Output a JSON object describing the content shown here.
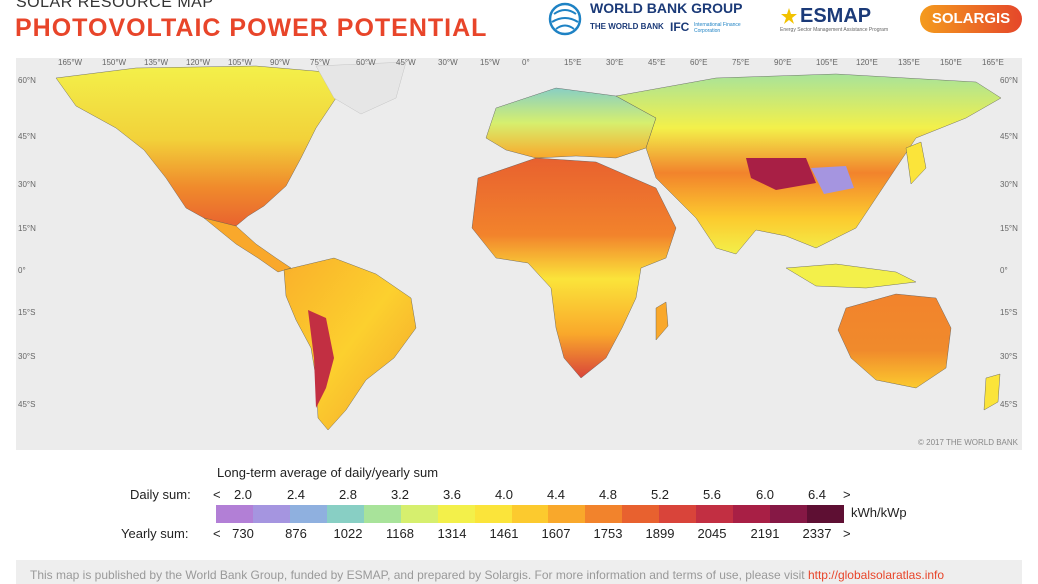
{
  "header": {
    "kicker": "SOLAR RESOURCE MAP",
    "title": "PHOTOVOLTAIC POWER POTENTIAL"
  },
  "logos": {
    "worldbank_group": "WORLD BANK GROUP",
    "worldbank": "THE WORLD BANK",
    "ifc": "IFC",
    "ifc_sub": "International Finance Corporation",
    "esmap": "ESMAP",
    "esmap_sub": "Energy Sector Management Assistance Program",
    "solargis": "SOLARGIS"
  },
  "map": {
    "longitude_labels": [
      "165°W",
      "150°W",
      "135°W",
      "120°W",
      "105°W",
      "90°W",
      "75°W",
      "60°W",
      "45°W",
      "30°W",
      "15°W",
      "0°",
      "15°E",
      "30°E",
      "45°E",
      "60°E",
      "75°E",
      "90°E",
      "105°E",
      "120°E",
      "135°E",
      "150°E",
      "165°E"
    ],
    "latitude_labels": [
      "60°N",
      "45°N",
      "30°N",
      "15°N",
      "0°",
      "15°S",
      "30°S",
      "45°S"
    ],
    "copyright": "© 2017 THE WORLD BANK"
  },
  "legend": {
    "title": "Long-term average of daily/yearly sum",
    "daily_label": "Daily sum:",
    "yearly_label": "Yearly sum:",
    "lt": "<",
    "gt": ">",
    "daily_values": [
      "2.0",
      "2.4",
      "2.8",
      "3.2",
      "3.6",
      "4.0",
      "4.4",
      "4.8",
      "5.2",
      "5.6",
      "6.0",
      "6.4"
    ],
    "yearly_values": [
      "730",
      "876",
      "1022",
      "1168",
      "1314",
      "1461",
      "1607",
      "1753",
      "1899",
      "2045",
      "2191",
      "2337"
    ],
    "unit": "kWh/kWp",
    "colors": [
      "#b27fd6",
      "#a595e0",
      "#8fb0df",
      "#88cfc4",
      "#a8e39a",
      "#d6ef6e",
      "#f3f04a",
      "#fbe43a",
      "#fcca2e",
      "#f9a82b",
      "#f2832c",
      "#e8612f",
      "#d9443a",
      "#c22f42",
      "#a81f45",
      "#861845",
      "#5e0f33"
    ]
  },
  "footer": {
    "text": "This map is published by the World Bank Group, funded by ESMAP, and prepared by Solargis. For more information and terms of use, please visit ",
    "link": "http://globalsolaratlas.info"
  }
}
